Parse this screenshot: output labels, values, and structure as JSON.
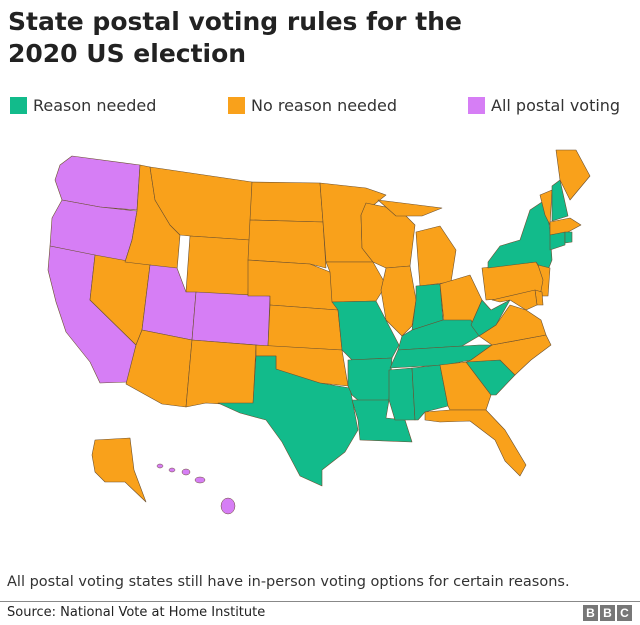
{
  "title": "State postal voting rules for the 2020 US election",
  "legend": [
    {
      "key": "reason",
      "label": "Reason needed",
      "color": "#12bb8b"
    },
    {
      "key": "noreason",
      "label": "No reason needed",
      "color": "#f9a11b"
    },
    {
      "key": "allpostal",
      "label": "All postal voting",
      "color": "#d67ef5"
    }
  ],
  "map": {
    "states": {
      "WA": "allpostal",
      "OR": "allpostal",
      "CA": "allpostal",
      "UT": "allpostal",
      "CO": "allpostal",
      "HI": "allpostal",
      "TX": "reason",
      "LA": "reason",
      "AR": "reason",
      "MO": "reason",
      "MS": "reason",
      "AL": "reason",
      "TN": "reason",
      "KY": "reason",
      "IN": "reason",
      "WV": "reason",
      "SC": "reason",
      "NY": "reason",
      "CT": "reason",
      "NH": "reason",
      "RI": "reason",
      "NV": "noreason",
      "ID": "noreason",
      "MT": "noreason",
      "WY": "noreason",
      "AZ": "noreason",
      "NM": "noreason",
      "ND": "noreason",
      "SD": "noreason",
      "NE": "noreason",
      "KS": "noreason",
      "OK": "noreason",
      "MN": "noreason",
      "IA": "noreason",
      "WI": "noreason",
      "IL": "noreason",
      "MI": "noreason",
      "OH": "noreason",
      "GA": "noreason",
      "FL": "noreason",
      "NC": "noreason",
      "VA": "noreason",
      "PA": "noreason",
      "VT": "noreason",
      "ME": "noreason",
      "MA": "noreason",
      "NJ": "noreason",
      "DE": "noreason",
      "MD": "noreason",
      "AK": "noreason"
    }
  },
  "footnote": "All postal voting states still have in-person voting options for certain reasons.",
  "source": "Source: National Vote at Home Institute",
  "logo": [
    "B",
    "B",
    "C"
  ]
}
